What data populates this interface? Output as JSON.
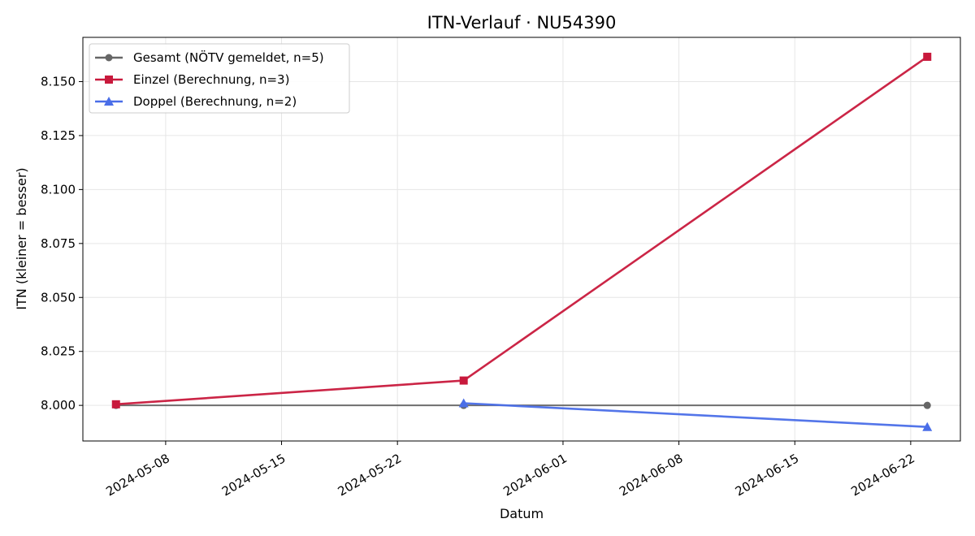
{
  "chart_data": {
    "type": "line",
    "title": "ITN-Verlauf · NU54390",
    "xlabel": "Datum",
    "ylabel": "ITN  (kleiner = besser)",
    "xlim": [
      "2024-05-03",
      "2024-06-25"
    ],
    "ylim": [
      7.9835,
      8.1705
    ],
    "x_ticks": [
      "2024-05-08",
      "2024-05-15",
      "2024-05-22",
      "2024-06-01",
      "2024-06-08",
      "2024-06-15",
      "2024-06-22"
    ],
    "y_ticks": [
      8.0,
      8.025,
      8.05,
      8.075,
      8.1,
      8.125,
      8.15
    ],
    "y_tick_labels": [
      "8.000",
      "8.025",
      "8.050",
      "8.075",
      "8.100",
      "8.125",
      "8.150"
    ],
    "grid": true,
    "legend_position": "top-left",
    "series": [
      {
        "name": "Gesamt (NÖTV gemeldet, n=5)",
        "color": "#666666",
        "marker": "circle",
        "points": [
          {
            "x": "2024-05-05",
            "y": 8.0
          },
          {
            "x": "2024-05-26",
            "y": 8.0
          },
          {
            "x": "2024-06-23",
            "y": 8.0
          }
        ]
      },
      {
        "name": "Einzel (Berechnung, n=3)",
        "color": "#c8193c",
        "marker": "square",
        "points": [
          {
            "x": "2024-05-05",
            "y": 8.0005
          },
          {
            "x": "2024-05-26",
            "y": 8.0115
          },
          {
            "x": "2024-06-23",
            "y": 8.1615
          }
        ]
      },
      {
        "name": "Doppel (Berechnung, n=2)",
        "color": "#4a6ee8",
        "marker": "triangle",
        "points": [
          {
            "x": "2024-05-26",
            "y": 8.001
          },
          {
            "x": "2024-06-23",
            "y": 7.99
          }
        ]
      }
    ]
  }
}
